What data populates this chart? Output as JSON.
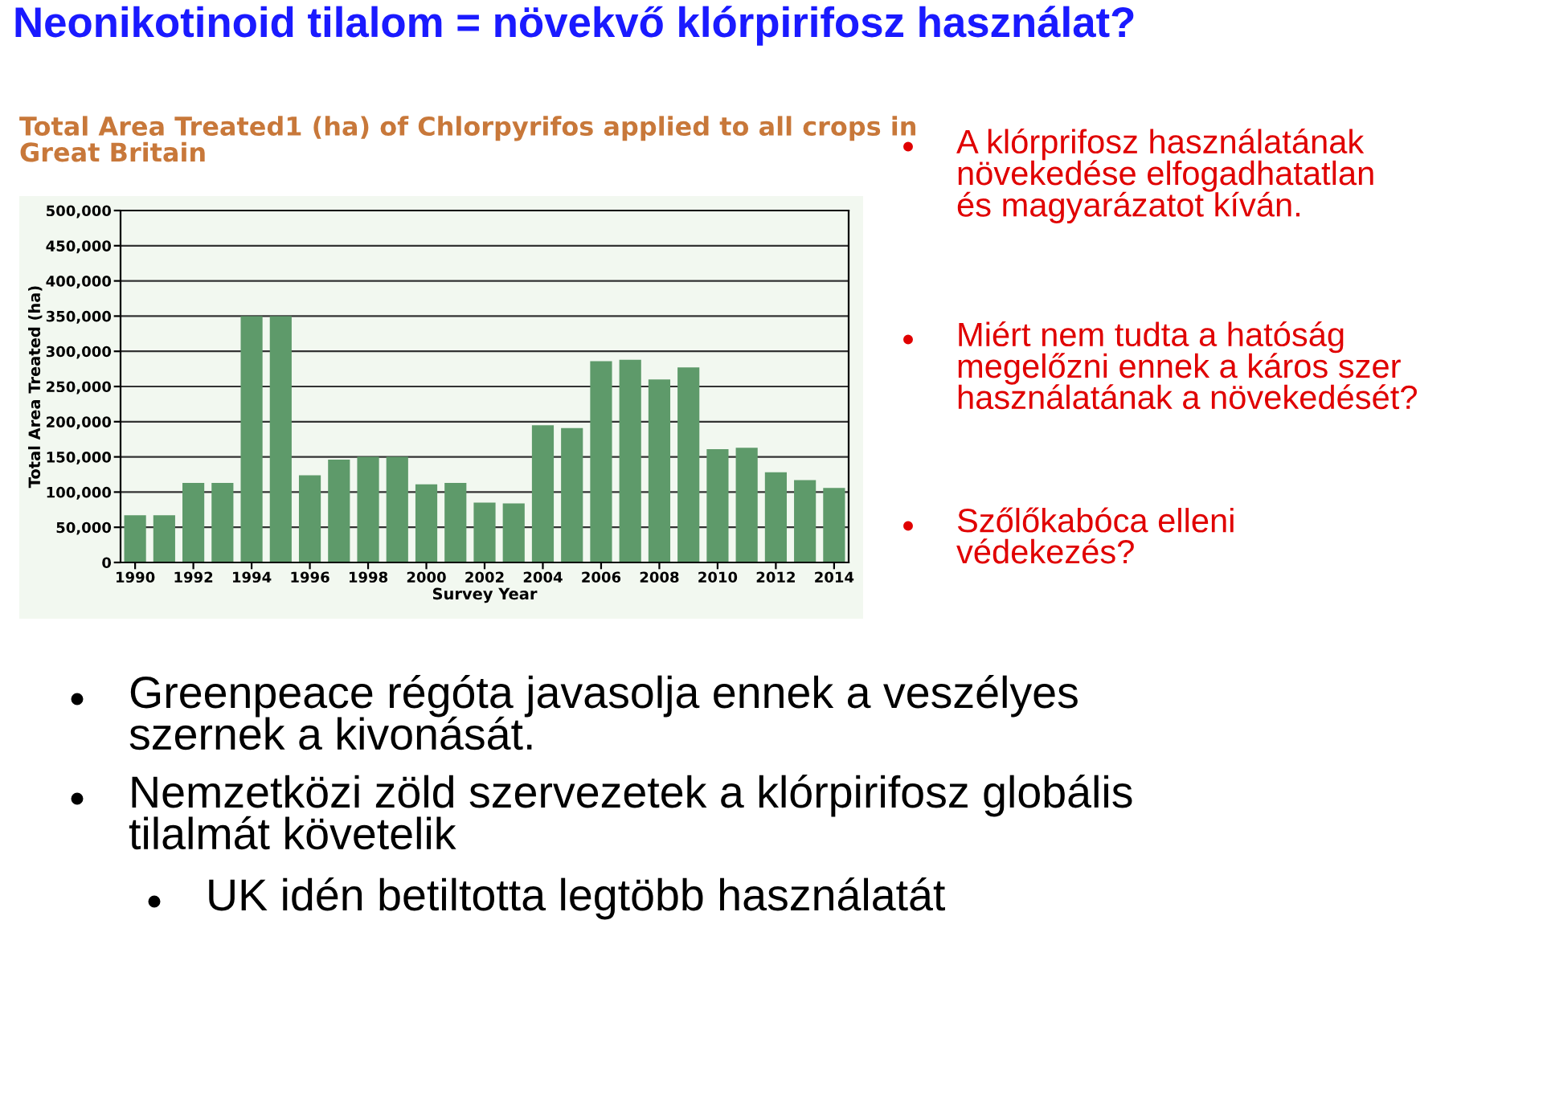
{
  "chart_data": {
    "type": "bar",
    "title": "Neonikotinoid tilalom = növekvő klórpirifosz használat?",
    "subtitle": "Total Area Treated1 (ha) of Chlorpyrifos applied to all crops in\nGreat Britain",
    "xlabel": "Survey Year",
    "ylabel": "Total Area Treated (ha)",
    "x": [
      1990,
      1991,
      1992,
      1993,
      1994,
      1995,
      1996,
      1997,
      1998,
      1999,
      2000,
      2001,
      2002,
      2003,
      2004,
      2005,
      2006,
      2007,
      2008,
      2009,
      2010,
      2011,
      2012,
      2013,
      2014
    ],
    "values": [
      67000,
      67000,
      113000,
      113000,
      350000,
      350000,
      124000,
      146000,
      150000,
      150000,
      111000,
      113000,
      85000,
      84000,
      195000,
      191000,
      286000,
      288000,
      260000,
      277000,
      161000,
      163000,
      128000,
      117000,
      106000
    ],
    "color": "#5e9a6a",
    "xlim": [
      1989.5,
      2014.5
    ],
    "xticks": [
      1990,
      1992,
      1994,
      1996,
      1998,
      2000,
      2002,
      2004,
      2006,
      2008,
      2010,
      2012,
      2014
    ],
    "ylim": [
      0,
      500000
    ],
    "yticks": [
      0,
      {
        "value": 50000,
        "label": "50,000"
      },
      {
        "value": 100000,
        "label": "100,000"
      },
      {
        "value": 150000,
        "label": "150,000"
      },
      {
        "value": 200000,
        "label": "200,000"
      },
      {
        "value": 250000,
        "label": "250,000"
      },
      {
        "value": 300000,
        "label": "300,000"
      },
      {
        "value": 350000,
        "label": "350,000"
      },
      {
        "value": 400000,
        "label": "400,000"
      },
      {
        "value": 450000,
        "label": "450,000"
      },
      {
        "value": 500000,
        "label": "500,000"
      }
    ],
    "grid": "y",
    "annotations": [
      "A klórprifosz használatának\nnövekedése elfogadhatatlan\nés magyarázatot kíván.",
      "Miért nem tudta a hatóság\nmegelőzni ennek a káros szer\nhasználatának a növekedését?",
      "Szőlőkabóca elleni\nvédekezés?",
      "Greenpeace régóta javasolja ennek a veszélyes\nszernek a kivonását.",
      "Nemzetközi zöld szervezetek a klórpirifosz globális\ntilalmát követelik",
      "UK idén betiltotta legtöbb használatát"
    ]
  }
}
